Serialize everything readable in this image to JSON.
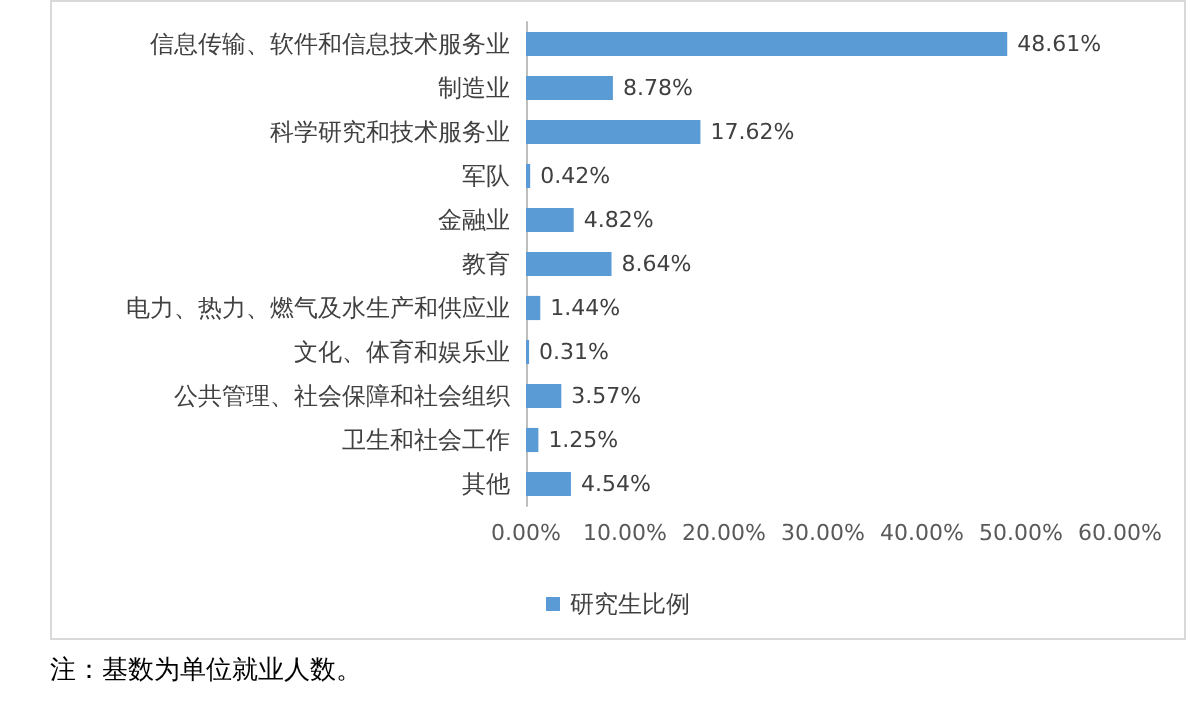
{
  "chart_data": {
    "type": "bar",
    "orientation": "horizontal",
    "categories": [
      "信息传输、软件和信息技术服务业",
      "制造业",
      "科学研究和技术服务业",
      "军队",
      "金融业",
      "教育",
      "电力、热力、燃气及水生产和供应业",
      "文化、体育和娱乐业",
      "公共管理、社会保障和社会组织",
      "卫生和社会工作",
      "其他"
    ],
    "series": [
      {
        "name": "研究生比例",
        "color": "#5b9bd5",
        "values": [
          48.61,
          8.78,
          17.62,
          0.42,
          4.82,
          8.64,
          1.44,
          0.31,
          3.57,
          1.25,
          4.54
        ],
        "value_labels": [
          "48.61%",
          "8.78%",
          "17.62%",
          "0.42%",
          "4.82%",
          "8.64%",
          "1.44%",
          "0.31%",
          "3.57%",
          "1.25%",
          "4.54%"
        ]
      }
    ],
    "xlim": [
      0,
      60
    ],
    "xticks": [
      {
        "value": 0,
        "label": "0.00%"
      },
      {
        "value": 10,
        "label": "10.00%"
      },
      {
        "value": 20,
        "label": "20.00%"
      },
      {
        "value": 30,
        "label": "30.00%"
      },
      {
        "value": 40,
        "label": "40.00%"
      },
      {
        "value": 50,
        "label": "50.00%"
      },
      {
        "value": 60,
        "label": "60.00%"
      }
    ],
    "legend": "bottom",
    "annotations": [
      "注：基数为单位就业人数。"
    ]
  }
}
